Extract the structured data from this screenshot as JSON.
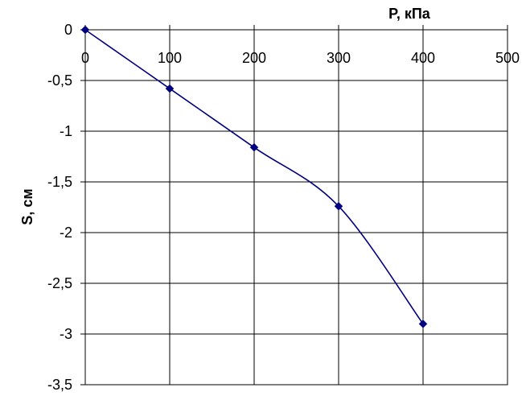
{
  "chart_data": {
    "type": "line",
    "title": "",
    "xlabel": "P,  кПа",
    "ylabel": "S, см",
    "x_axis_position": "top",
    "xlim": [
      0,
      500
    ],
    "ylim": [
      -3.5,
      0
    ],
    "x_ticks": [
      0,
      100,
      200,
      300,
      400,
      500
    ],
    "y_ticks": [
      0,
      -0.5,
      -1,
      -1.5,
      -2,
      -2.5,
      -3,
      -3.5
    ],
    "x_tick_labels": [
      "0",
      "100",
      "200",
      "300",
      "400",
      "500"
    ],
    "y_tick_labels": [
      "0",
      "-0,5",
      "-1",
      "-1,5",
      "-2",
      "-2,5",
      "-3",
      "-3,5"
    ],
    "grid": true,
    "smooth": true,
    "series": [
      {
        "marker": "diamond",
        "color": "#000080",
        "x": [
          0,
          100,
          200,
          300,
          400
        ],
        "y": [
          0,
          -0.58,
          -1.16,
          -1.74,
          -2.9
        ]
      }
    ]
  }
}
